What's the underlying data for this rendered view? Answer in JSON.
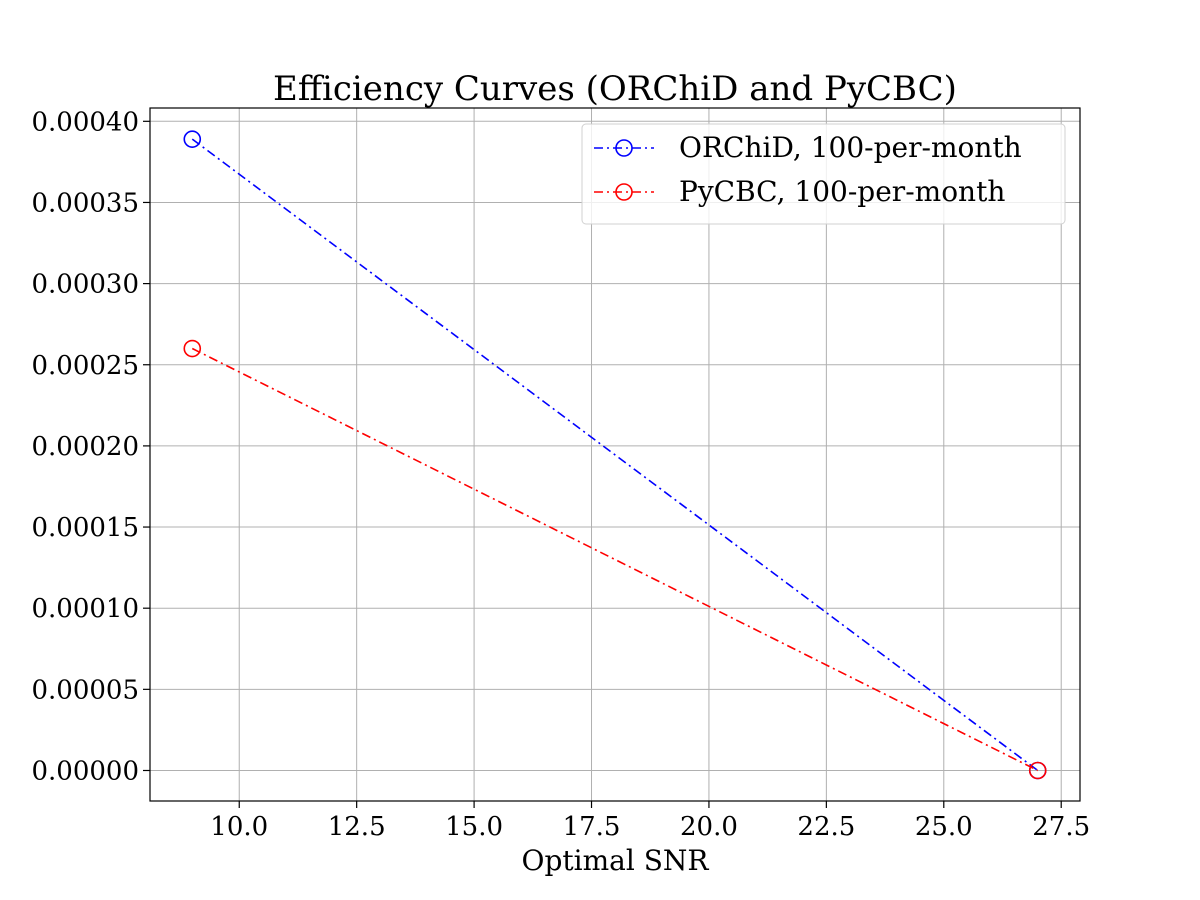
{
  "chart_data": {
    "type": "line",
    "title": "Efficiency Curves (ORChiD and PyCBC)",
    "xlabel": "Optimal SNR",
    "ylabel": "",
    "xlim": [
      8.1,
      27.9
    ],
    "ylim": [
      -1.88e-05,
      0.0004082
    ],
    "xticks": [
      "10.0",
      "12.5",
      "15.0",
      "17.5",
      "20.0",
      "22.5",
      "25.0",
      "27.5"
    ],
    "yticks": [
      "0.00000",
      "0.00005",
      "0.00010",
      "0.00015",
      "0.00020",
      "0.00025",
      "0.00030",
      "0.00035",
      "0.00040"
    ],
    "grid": true,
    "legend_position": "top-right",
    "series": [
      {
        "name": "ORChiD, 100-per-month",
        "color": "#0000ff",
        "x": [
          9,
          27
        ],
        "y": [
          0.000389,
          0.0
        ]
      },
      {
        "name": "PyCBC, 100-per-month",
        "color": "#ff0000",
        "x": [
          9,
          27
        ],
        "y": [
          0.00026,
          0.0
        ]
      }
    ]
  }
}
